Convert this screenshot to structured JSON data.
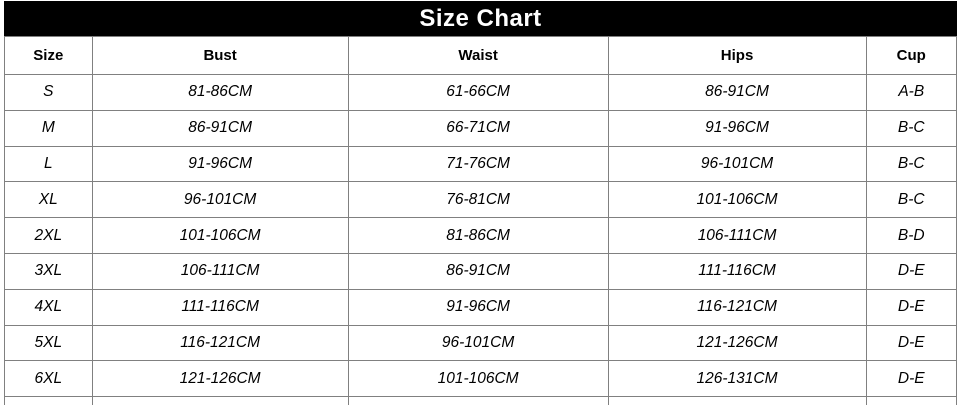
{
  "title": "Size Chart",
  "colors": {
    "title_bg": "#000000",
    "title_text": "#ffffff",
    "border": "#808080",
    "text": "#000000",
    "cell_bg": "#ffffff"
  },
  "table": {
    "columns": [
      "Size",
      "Bust",
      "Waist",
      "Hips",
      "Cup"
    ],
    "column_widths_percent": [
      9.2,
      26.9,
      27.3,
      27.1,
      9.5
    ],
    "rows": [
      {
        "size": "S",
        "bust": "81-86CM",
        "waist": "61-66CM",
        "hips": "86-91CM",
        "cup": "A-B"
      },
      {
        "size": "M",
        "bust": "86-91CM",
        "waist": "66-71CM",
        "hips": "91-96CM",
        "cup": "B-C"
      },
      {
        "size": "L",
        "bust": "91-96CM",
        "waist": "71-76CM",
        "hips": "96-101CM",
        "cup": "B-C"
      },
      {
        "size": "XL",
        "bust": "96-101CM",
        "waist": "76-81CM",
        "hips": "101-106CM",
        "cup": "B-C"
      },
      {
        "size": "2XL",
        "bust": "101-106CM",
        "waist": "81-86CM",
        "hips": "106-111CM",
        "cup": "B-D"
      },
      {
        "size": "3XL",
        "bust": "106-111CM",
        "waist": "86-91CM",
        "hips": "111-116CM",
        "cup": "D-E"
      },
      {
        "size": "4XL",
        "bust": "111-116CM",
        "waist": "91-96CM",
        "hips": "116-121CM",
        "cup": "D-E"
      },
      {
        "size": "5XL",
        "bust": "116-121CM",
        "waist": "96-101CM",
        "hips": "121-126CM",
        "cup": "D-E"
      },
      {
        "size": "6XL",
        "bust": "121-126CM",
        "waist": "101-106CM",
        "hips": "126-131CM",
        "cup": "D-E"
      }
    ]
  },
  "chart_data": {
    "type": "table",
    "title": "Size Chart",
    "columns": [
      "Size",
      "Bust",
      "Waist",
      "Hips",
      "Cup"
    ],
    "rows": [
      [
        "S",
        "81-86CM",
        "61-66CM",
        "86-91CM",
        "A-B"
      ],
      [
        "M",
        "86-91CM",
        "66-71CM",
        "91-96CM",
        "B-C"
      ],
      [
        "L",
        "91-96CM",
        "71-76CM",
        "96-101CM",
        "B-C"
      ],
      [
        "XL",
        "96-101CM",
        "76-81CM",
        "101-106CM",
        "B-C"
      ],
      [
        "2XL",
        "101-106CM",
        "81-86CM",
        "106-111CM",
        "B-D"
      ],
      [
        "3XL",
        "106-111CM",
        "86-91CM",
        "111-116CM",
        "D-E"
      ],
      [
        "4XL",
        "111-116CM",
        "91-96CM",
        "116-121CM",
        "D-E"
      ],
      [
        "5XL",
        "116-121CM",
        "96-101CM",
        "121-126CM",
        "D-E"
      ],
      [
        "6XL",
        "121-126CM",
        "101-106CM",
        "126-131CM",
        "D-E"
      ]
    ]
  }
}
